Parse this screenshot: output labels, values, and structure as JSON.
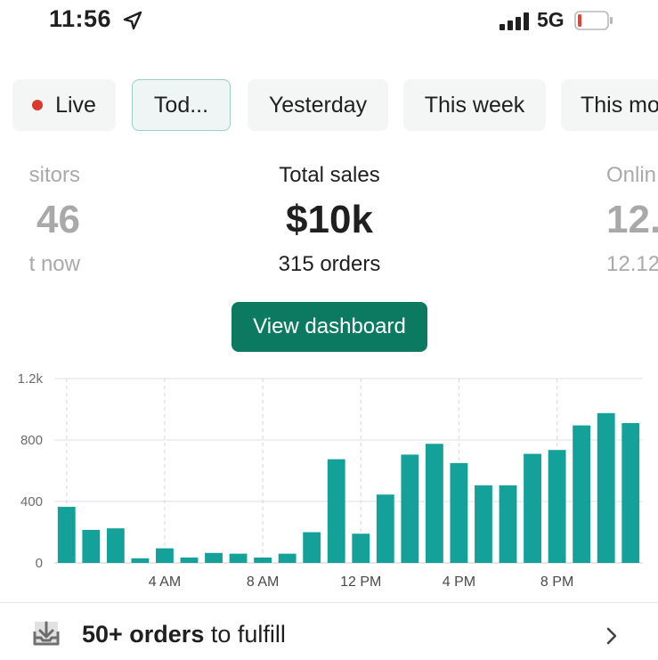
{
  "status_bar": {
    "time": "11:56",
    "network": "5G",
    "icons": [
      "location-arrow-icon",
      "signal-bars-icon",
      "battery-low-icon"
    ],
    "battery_color": "#e5433a"
  },
  "tabs": [
    {
      "label": "Live",
      "selected": false,
      "dot_color": "#d93a2b"
    },
    {
      "label": "Tod...",
      "selected": true
    },
    {
      "label": "Yesterday",
      "selected": false
    },
    {
      "label": "This week",
      "selected": false
    },
    {
      "label": "This mo",
      "selected": false
    }
  ],
  "metrics": {
    "left": {
      "label": "sitors",
      "value": "46",
      "sub": "t now"
    },
    "center": {
      "label": "Total sales",
      "value": "$10k",
      "sub": "315 orders"
    },
    "right": {
      "label": "Onlin",
      "value": "12.",
      "sub": "12.12"
    }
  },
  "view_dashboard_label": "View dashboard",
  "chart_data": {
    "type": "bar",
    "x": [
      "12 AM",
      "1 AM",
      "2 AM",
      "3 AM",
      "4 AM",
      "5 AM",
      "6 AM",
      "7 AM",
      "8 AM",
      "9 AM",
      "10 AM",
      "11 AM",
      "12 PM",
      "1 PM",
      "2 PM",
      "3 PM",
      "4 PM",
      "5 PM",
      "6 PM",
      "7 PM",
      "8 PM",
      "9 PM",
      "10 PM",
      "11 PM"
    ],
    "values": [
      365,
      215,
      225,
      30,
      95,
      35,
      65,
      60,
      35,
      60,
      200,
      675,
      190,
      445,
      705,
      775,
      650,
      505,
      505,
      710,
      735,
      895,
      975,
      910
    ],
    "x_tick_labels": [
      "4 AM",
      "8 AM",
      "12 PM",
      "4 PM",
      "8 PM"
    ],
    "y_tick_labels": [
      "0",
      "400",
      "800",
      "1.2k"
    ],
    "ylim": [
      0,
      1200
    ],
    "grid": true,
    "bar_color": "#13a19a"
  },
  "fulfill": {
    "bold": "50+ orders",
    "rest": " to fulfill",
    "icon": "inbox-download-icon"
  }
}
